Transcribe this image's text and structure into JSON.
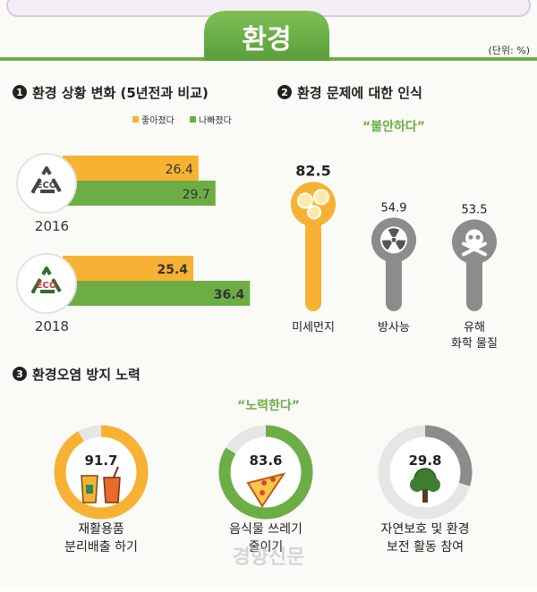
{
  "header": {
    "title": "환경",
    "unit": "(단위: %)"
  },
  "colors": {
    "green": "#6cae45",
    "orange": "#f7b233",
    "gray": "#8c8c8c",
    "dark_green": "#2f6d2a"
  },
  "source": "경향신문",
  "chart_data": [
    {
      "type": "bar",
      "orientation": "horizontal",
      "section_number": "1",
      "title": "환경 상황 변화 (5년전과 비교)",
      "legend": [
        "좋아졌다",
        "나빠졌다"
      ],
      "legend_placement": "top-right",
      "categories": [
        "2016",
        "2018"
      ],
      "icon_label": "ECO",
      "series": [
        {
          "name": "좋아졌다",
          "values": [
            26.4,
            25.4
          ],
          "color": "#f7b233"
        },
        {
          "name": "나빠졌다",
          "values": [
            29.7,
            36.4
          ],
          "color": "#6cae45"
        }
      ]
    },
    {
      "type": "bar",
      "section_number": "2",
      "title": "환경 문제에 대한 인식",
      "subtitle": "“불안하다”",
      "categories": [
        {
          "label_lines": [
            "미세먼지"
          ],
          "icon": "fine-dust-icon"
        },
        {
          "label_lines": [
            "방사능"
          ],
          "icon": "radiation-icon"
        },
        {
          "label_lines": [
            "유해",
            "화학 물질"
          ],
          "icon": "skull-crossbones-icon"
        }
      ],
      "values": [
        82.5,
        54.9,
        53.5
      ],
      "labels": [
        "82.5",
        "54.9",
        "53.5"
      ]
    },
    {
      "type": "pie",
      "style": "donut",
      "section_number": "3",
      "title": "환경오염 방지 노력",
      "subtitle": "“노력한다”",
      "items": [
        {
          "value": 91.7,
          "label": "91.7",
          "label_lines": [
            "재활용품",
            "분리배출 하기"
          ],
          "color": "#f7b233",
          "icon": "recycle-cups-icon"
        },
        {
          "value": 83.6,
          "label": "83.6",
          "label_lines": [
            "음식물 쓰레기",
            "줄이기"
          ],
          "color": "#6cae45",
          "icon": "pizza-slice-icon"
        },
        {
          "value": 29.8,
          "label": "29.8",
          "label_lines": [
            "자연보호 및 환경",
            "보전 활동 참여"
          ],
          "color": "#8c8c8c",
          "icon": "tree-icon"
        }
      ]
    }
  ]
}
